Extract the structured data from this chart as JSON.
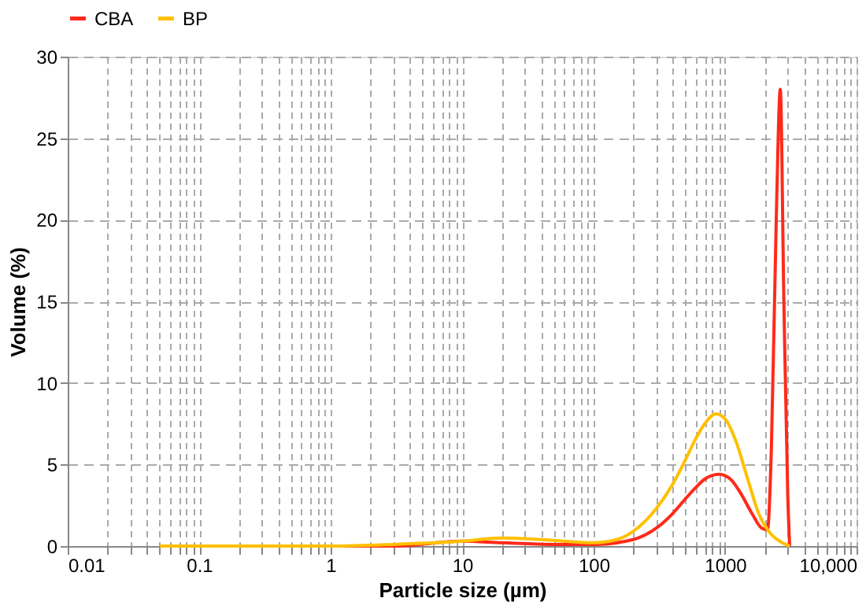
{
  "chart_data": {
    "type": "line",
    "xlabel": "Particle size (µm)",
    "ylabel": "Volume (%)",
    "xlim": [
      0.01,
      10000
    ],
    "ylim": [
      0,
      30
    ],
    "yticks": [
      0,
      5,
      10,
      15,
      20,
      25,
      30
    ],
    "xticks": [
      0.01,
      {
        "value": 0.02,
        "label": null
      },
      {
        "value": 0.03,
        "label": null
      },
      {
        "value": 0.04,
        "label": null
      },
      {
        "value": 0.05,
        "label": null
      },
      {
        "value": 0.06,
        "label": null
      },
      {
        "value": 0.07,
        "label": null
      },
      {
        "value": 0.08,
        "label": null
      },
      {
        "value": 0.09,
        "label": null
      },
      0.1,
      {
        "value": 0.2,
        "label": null
      },
      {
        "value": 0.3,
        "label": null
      },
      {
        "value": 0.4,
        "label": null
      },
      {
        "value": 0.5,
        "label": null
      },
      {
        "value": 0.6,
        "label": null
      },
      {
        "value": 0.7,
        "label": null
      },
      {
        "value": 0.8,
        "label": null
      },
      {
        "value": 0.9,
        "label": null
      },
      1,
      {
        "value": 2,
        "label": null
      },
      {
        "value": 3,
        "label": null
      },
      {
        "value": 4,
        "label": null
      },
      {
        "value": 5,
        "label": null
      },
      {
        "value": 6,
        "label": null
      },
      {
        "value": 7,
        "label": null
      },
      {
        "value": 8,
        "label": null
      },
      {
        "value": 9,
        "label": null
      },
      10,
      {
        "value": 20,
        "label": null
      },
      {
        "value": 30,
        "label": null
      },
      {
        "value": 40,
        "label": null
      },
      {
        "value": 50,
        "label": null
      },
      {
        "value": 60,
        "label": null
      },
      {
        "value": 70,
        "label": null
      },
      {
        "value": 80,
        "label": null
      },
      {
        "value": 90,
        "label": null
      },
      100,
      {
        "value": 200,
        "label": null
      },
      {
        "value": 300,
        "label": null
      },
      {
        "value": 400,
        "label": null
      },
      {
        "value": 500,
        "label": null
      },
      {
        "value": 600,
        "label": null
      },
      {
        "value": 700,
        "label": null
      },
      {
        "value": 800,
        "label": null
      },
      {
        "value": 900,
        "label": null
      },
      1000,
      {
        "value": 2000,
        "label": null
      },
      {
        "value": 3000,
        "label": null
      },
      {
        "value": 4000,
        "label": null
      },
      {
        "value": 5000,
        "label": null
      },
      {
        "value": 6000,
        "label": null
      },
      {
        "value": 7000,
        "label": null
      },
      {
        "value": 8000,
        "label": null
      },
      {
        "value": 9000,
        "label": null
      },
      {
        "value": 10000,
        "label": "10,000"
      }
    ],
    "log": "x",
    "grid": true,
    "legend": "top",
    "marker": "none",
    "line_style": "solid",
    "series": [
      {
        "name": "CBA",
        "color": "#ff2a1a",
        "x": [
          0.05,
          1,
          3,
          10,
          20,
          50,
          100,
          200,
          300,
          400,
          500,
          600,
          700,
          900,
          1100,
          1300,
          1600,
          1900,
          2100,
          2250,
          2450,
          2630,
          2800,
          3000,
          3100
        ],
        "values": [
          0,
          0,
          0,
          0.3,
          0.2,
          0.1,
          0.1,
          0.4,
          1.1,
          2.0,
          2.9,
          3.6,
          4.1,
          4.4,
          4.1,
          3.3,
          2.0,
          1.1,
          1.0,
          6,
          20,
          28,
          15,
          3,
          0
        ]
      },
      {
        "name": "BP",
        "color": "#ffc000",
        "x": [
          0.05,
          1,
          3,
          10,
          20,
          40,
          100,
          150,
          200,
          300,
          400,
          500,
          600,
          700,
          850,
          1000,
          1200,
          1500,
          1800,
          2200,
          2600,
          3100
        ],
        "values": [
          0,
          0,
          0.1,
          0.3,
          0.5,
          0.4,
          0.2,
          0.4,
          0.9,
          2.3,
          3.8,
          5.3,
          6.6,
          7.5,
          8.1,
          7.8,
          6.5,
          4.0,
          2.0,
          0.8,
          0.3,
          0
        ]
      }
    ]
  }
}
